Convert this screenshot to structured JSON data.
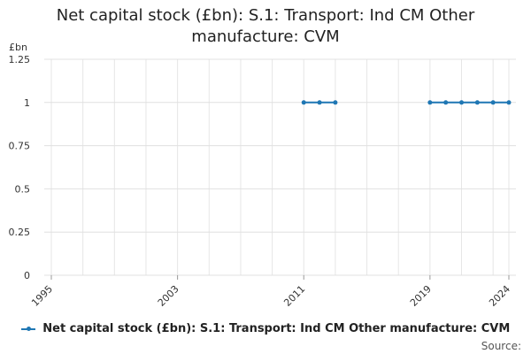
{
  "chart_data": {
    "type": "line",
    "title": "Net capital stock (£bn): S.1: Transport: Ind CM Other manufacture: CVM",
    "title_lines": [
      "Net capital stock (£bn): S.1: Transport: Ind CM Other",
      "manufacture: CVM"
    ],
    "ylabel": "£bn",
    "xlabel": "",
    "ylim": [
      0,
      1.25
    ],
    "xlim": [
      1995,
      2024
    ],
    "y_ticks": [
      0,
      0.25,
      0.5,
      0.75,
      1,
      1.25
    ],
    "y_tick_labels": [
      "0",
      "0.25",
      "0.5",
      "0.75",
      "1",
      "1.25"
    ],
    "x_tick_labels": [
      "1995",
      "2003",
      "2011",
      "2019",
      "2024"
    ],
    "grid": true,
    "legend_position": "bottom",
    "series": [
      {
        "name": "Net capital stock (£bn): S.1: Transport: Ind CM Other manufacture: CVM",
        "color": "#1f77b4",
        "segments": [
          {
            "x": [
              2011,
              2012,
              2013
            ],
            "y": [
              1,
              1,
              1
            ]
          },
          {
            "x": [
              2019,
              2020,
              2021,
              2022,
              2023,
              2024
            ],
            "y": [
              1,
              1,
              1,
              1,
              1,
              1
            ]
          }
        ]
      }
    ]
  },
  "source_label": "Source:"
}
